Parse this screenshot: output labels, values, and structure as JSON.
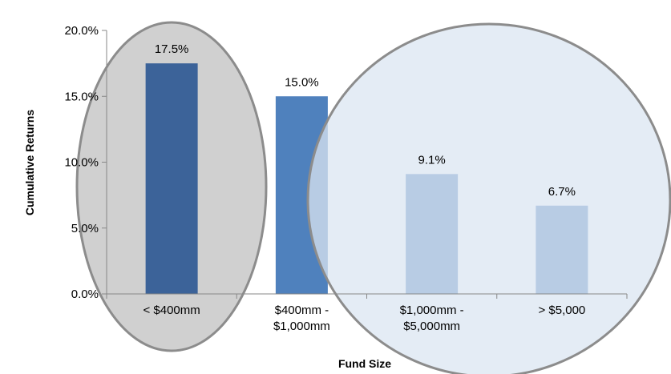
{
  "chart_data": {
    "type": "bar",
    "categories": [
      [
        "< $400mm"
      ],
      [
        "$400mm -",
        "$1,000mm"
      ],
      [
        "$1,000mm -",
        "$5,000mm"
      ],
      [
        "> $5,000"
      ]
    ],
    "values": [
      17.5,
      15.0,
      9.1,
      6.7
    ],
    "data_labels": [
      "17.5%",
      "15.0%",
      "9.1%",
      "6.7%"
    ],
    "xlabel": "Fund Size",
    "ylabel": "Cumulative Returns",
    "ylim": [
      0,
      20
    ],
    "yticks": [
      0,
      5,
      10,
      15,
      20
    ],
    "ytick_labels": [
      "0.0%",
      "5.0%",
      "10.0%",
      "15.0%",
      "20.0%"
    ],
    "grid": false,
    "colors": {
      "bar": "#4f81bd",
      "bar_highlight": "#3c6399",
      "left_ellipse_fill": "#d0d0d0",
      "right_ellipse_fill": "#dbe5f1",
      "ellipse_stroke": "#8c8c8c",
      "axis": "#878787"
    },
    "highlight_index": 0
  }
}
